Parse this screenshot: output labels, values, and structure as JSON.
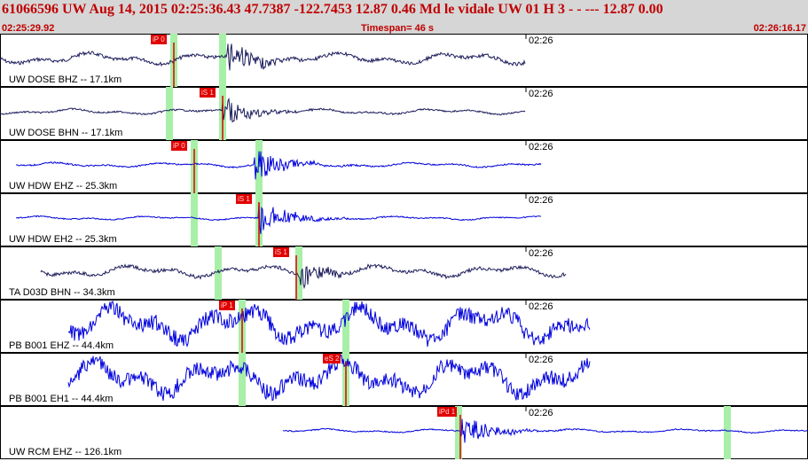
{
  "header": {
    "title": "61066596 UW Aug 14, 2015 02:25:36.43    47.7387 -122.7453 12.87 0.46 Md le    vidale    UW 01 H    3  - - --- 12.87 0.00",
    "start_time": "02:25:29.92",
    "timespan": "Timespan=  46 s",
    "end_time": "02:26:16.17"
  },
  "colors": {
    "header_bg": "#d6d6d6",
    "header_text": "#c00000",
    "trace_dark": "#1c1c5c",
    "trace_blue": "#0000dd",
    "pick": "#e00000",
    "highlight": "#a8f0a8"
  },
  "panels": [
    {
      "label": "UW DOSE BHZ -- 17.1km",
      "time": "02:26",
      "pick": "iP 0",
      "color": "trace_dark",
      "start": 0.0,
      "end": 0.65,
      "amp": 0.25,
      "burst": 0.28,
      "burst_amp": 0.8,
      "greens": [
        0.215,
        0.275
      ],
      "pick_line": 0.215
    },
    {
      "label": "UW DOSE BHN -- 17.1km",
      "time": "02:26",
      "pick": "iS 1",
      "color": "trace_dark",
      "start": 0.0,
      "end": 0.65,
      "amp": 0.12,
      "burst": 0.275,
      "burst_amp": 0.7,
      "greens": [
        0.21,
        0.275
      ],
      "pick_line": 0.275
    },
    {
      "label": "UW HDW EHZ -- 25.3km",
      "time": "02:26",
      "pick": "iP 0",
      "color": "trace_blue",
      "start": 0.02,
      "end": 0.67,
      "amp": 0.1,
      "burst": 0.315,
      "burst_amp": 0.8,
      "greens": [
        0.24,
        0.32
      ],
      "pick_line": 0.24
    },
    {
      "label": "UW HDW EH2 -- 25.3km",
      "time": "02:26",
      "pick": "iS 1",
      "color": "trace_blue",
      "start": 0.02,
      "end": 0.67,
      "amp": 0.08,
      "burst": 0.32,
      "burst_amp": 0.8,
      "greens": [
        0.24,
        0.32
      ],
      "pick_line": 0.32
    },
    {
      "label": "TA D03D BHN -- 34.3km",
      "time": "02:26",
      "pick": "iS 1",
      "color": "trace_dark",
      "start": 0.05,
      "end": 0.7,
      "amp": 0.25,
      "burst": 0.37,
      "burst_amp": 0.6,
      "greens": [
        0.27,
        0.37
      ],
      "pick_line": 0.367
    },
    {
      "label": "PB B001 EHZ -- 44.4km",
      "time": "02:26",
      "pick": "iP 1",
      "color": "trace_blue",
      "start": 0.085,
      "end": 0.73,
      "amp": 0.75,
      "burst": 0.0,
      "burst_amp": 0.0,
      "greens": [
        0.3,
        0.428
      ],
      "pick_line": 0.3
    },
    {
      "label": "PB B001 EH1 -- 44.4km",
      "time": "02:26",
      "pick": "eS 2",
      "color": "trace_blue",
      "start": 0.085,
      "end": 0.73,
      "amp": 0.75,
      "burst": 0.0,
      "burst_amp": 0.0,
      "greens": [
        0.3,
        0.428
      ],
      "pick_line": 0.428
    },
    {
      "label": "UW RCM EHZ -- 126.1km",
      "time": "02:26",
      "pick": "iPd 1",
      "color": "trace_blue",
      "start": 0.35,
      "end": 1.0,
      "amp": 0.08,
      "burst": 0.57,
      "burst_amp": 0.8,
      "greens": [
        0.568,
        0.9
      ],
      "pick_line": 0.57
    }
  ]
}
